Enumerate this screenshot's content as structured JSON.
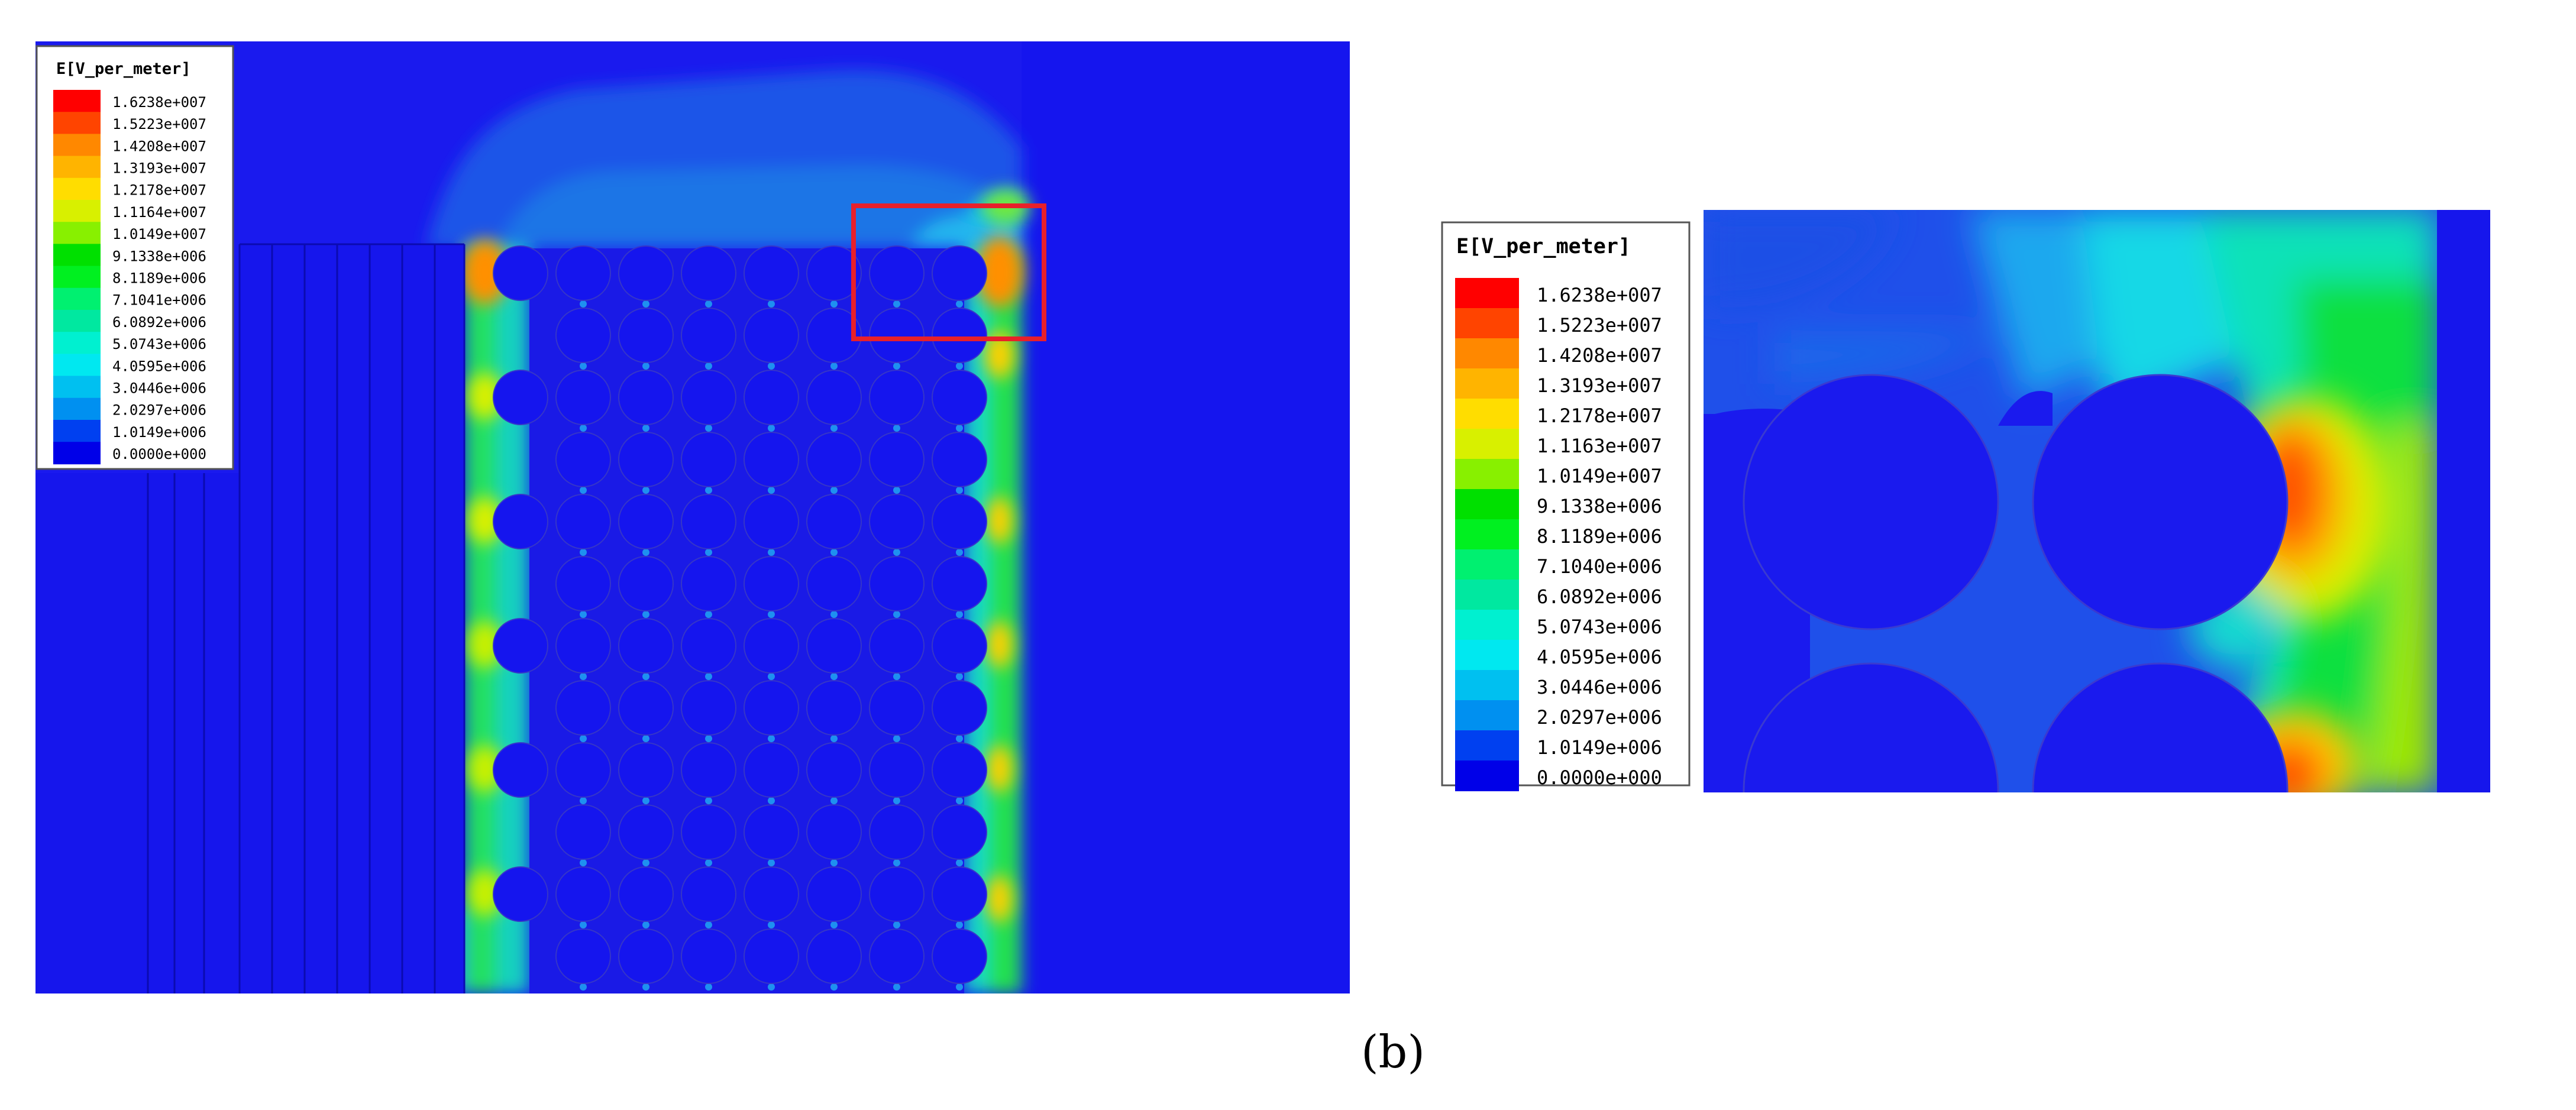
{
  "left_panel": {
    "legend": {
      "title": "E[V_per_meter]",
      "labels": [
        "1.6238e+007",
        "1.5223e+007",
        "1.4208e+007",
        "1.3193e+007",
        "1.2178e+007",
        "1.1164e+007",
        "1.0149e+007",
        "9.1338e+006",
        "8.1189e+006",
        "7.1041e+006",
        "6.0892e+006",
        "5.0743e+006",
        "4.0595e+006",
        "3.0446e+006",
        "2.0297e+006",
        "1.0149e+006",
        "0.0000e+000"
      ]
    }
  },
  "right_panel": {
    "legend": {
      "title": "E[V_per_meter]",
      "labels": [
        "1.6238e+007",
        "1.5223e+007",
        "1.4208e+007",
        "1.3193e+007",
        "1.2178e+007",
        "1.1163e+007",
        "1.0149e+007",
        "9.1338e+006",
        "8.1189e+006",
        "7.1040e+006",
        "6.0892e+006",
        "5.0743e+006",
        "4.0595e+006",
        "3.0446e+006",
        "2.0297e+006",
        "1.0149e+006",
        "0.0000e+000"
      ]
    }
  },
  "colors": [
    "#ff0000",
    "#ff4400",
    "#ff8800",
    "#ffb400",
    "#ffdd00",
    "#d8f000",
    "#88f000",
    "#00e000",
    "#00f020",
    "#00f070",
    "#00e8a0",
    "#00f0d0",
    "#00e8f0",
    "#00c0f0",
    "#0090f0",
    "#0040f0",
    "#0000e8"
  ],
  "caption": "(b)"
}
